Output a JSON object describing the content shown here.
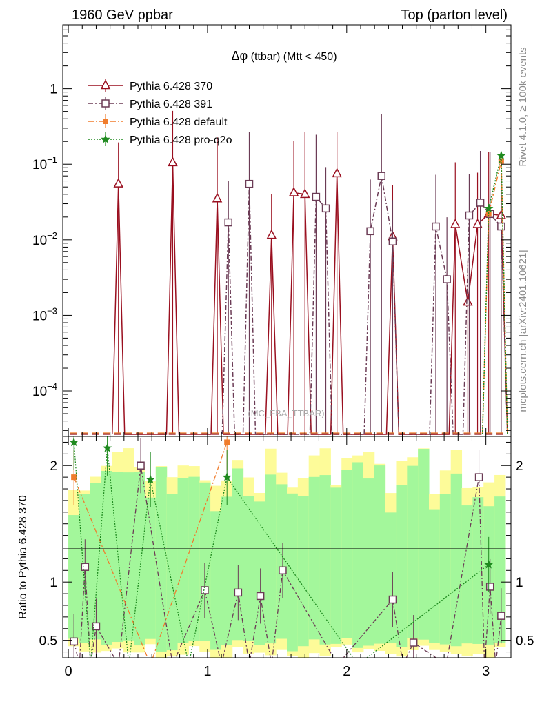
{
  "header": {
    "left_title": "1960 GeV ppbar",
    "right_title": "Top (parton level)",
    "observable_prefix": "Δφ",
    "observable_suffix": "(ttbar) (Mtt < 450)",
    "watermark": "(MC_FBA_TTBAR)",
    "side_text_rivet": "Rivet 4.1.0, ≥ 100k events",
    "side_text_mcplots": "mcplots.cern.ch [arXiv:2401.10621]",
    "ratio_ylabel": "Ratio to Pythia 6.428 370"
  },
  "colors": {
    "p370": "#9a0f1f",
    "p391": "#6b3b55",
    "pdefault": "#f07c2c",
    "pq2o": "#1f8a1f",
    "band_green": "#a3f79b",
    "band_yellow": "#fdfb99"
  },
  "chart_data": [
    {
      "type": "line",
      "panel": "main",
      "title": "Δφ (ttbar) (Mtt < 450)",
      "xlabel": "",
      "ylabel": "",
      "xlim": [
        -0.04,
        3.18
      ],
      "ylim": [
        2.5e-05,
        7
      ],
      "yscale": "log",
      "ytick_labels": [
        "10^-4",
        "10^-3",
        "10^-2",
        "10^-1",
        "1"
      ],
      "xtick_labels": [
        "0",
        "1",
        "2",
        "3"
      ],
      "legend_position": "top-left",
      "series": [
        {
          "name": "Pythia 6.428 370",
          "marker": "triangle",
          "x": [
            0.36,
            0.75,
            1.07,
            1.46,
            1.62,
            1.7,
            1.93,
            2.33,
            2.78,
            2.87,
            2.94,
            3.02,
            3.11
          ],
          "y": [
            0.055,
            0.105,
            0.035,
            0.0115,
            0.042,
            0.04,
            0.075,
            0.011,
            0.016,
            0.0015,
            0.016,
            0.022,
            0.021
          ]
        },
        {
          "name": "Pythia 6.428 391",
          "marker": "square",
          "x": [
            1.15,
            1.3,
            1.78,
            1.85,
            2.17,
            2.25,
            2.33,
            2.64,
            2.72,
            2.88,
            2.96,
            3.03,
            3.11
          ],
          "y": [
            0.017,
            0.055,
            0.037,
            0.026,
            0.013,
            0.07,
            0.0095,
            0.015,
            0.003,
            0.021,
            0.031,
            0.022,
            0.015
          ]
        },
        {
          "name": "Pythia 6.428 default",
          "marker": "filled-square",
          "x": [
            3.02,
            3.11
          ],
          "y": [
            0.022,
            0.11
          ]
        },
        {
          "name": "Pythia 6.428 pro-q2o",
          "marker": "star",
          "x": [
            3.02,
            3.11
          ],
          "y": [
            0.026,
            0.13
          ]
        }
      ]
    },
    {
      "type": "line",
      "panel": "ratio",
      "xlabel": "",
      "ylabel": "Ratio to Pythia 6.428 370",
      "xlim": [
        -0.04,
        3.18
      ],
      "ylim": [
        0.35,
        2.25
      ],
      "ytick_labels": [
        "0.5",
        "1",
        "2"
      ],
      "xtick_labels": [
        "0",
        "1",
        "2",
        "3"
      ],
      "reference_line": 1,
      "series": [
        {
          "name": "Pythia 6.428 391",
          "marker": "square",
          "x": [
            0.04,
            0.12,
            0.2,
            0.52,
            0.98,
            1.22,
            1.38,
            1.54,
            2.33,
            2.48,
            2.95,
            3.03,
            3.11
          ],
          "y": [
            0.49,
            1.13,
            0.62,
            2.0,
            0.93,
            0.91,
            0.88,
            1.1,
            0.85,
            0.48,
            1.9,
            0.96,
            0.71
          ]
        },
        {
          "name": "Pythia 6.428 default",
          "marker": "filled-square",
          "x": [
            0.04,
            1.14
          ],
          "y": [
            1.9,
            2.2
          ]
        },
        {
          "name": "Pythia 6.428 pro-q2o",
          "marker": "star",
          "x": [
            0.04,
            0.28,
            0.59,
            1.14,
            3.02
          ],
          "y": [
            2.2,
            2.15,
            1.88,
            1.9,
            1.15
          ]
        }
      ]
    }
  ]
}
